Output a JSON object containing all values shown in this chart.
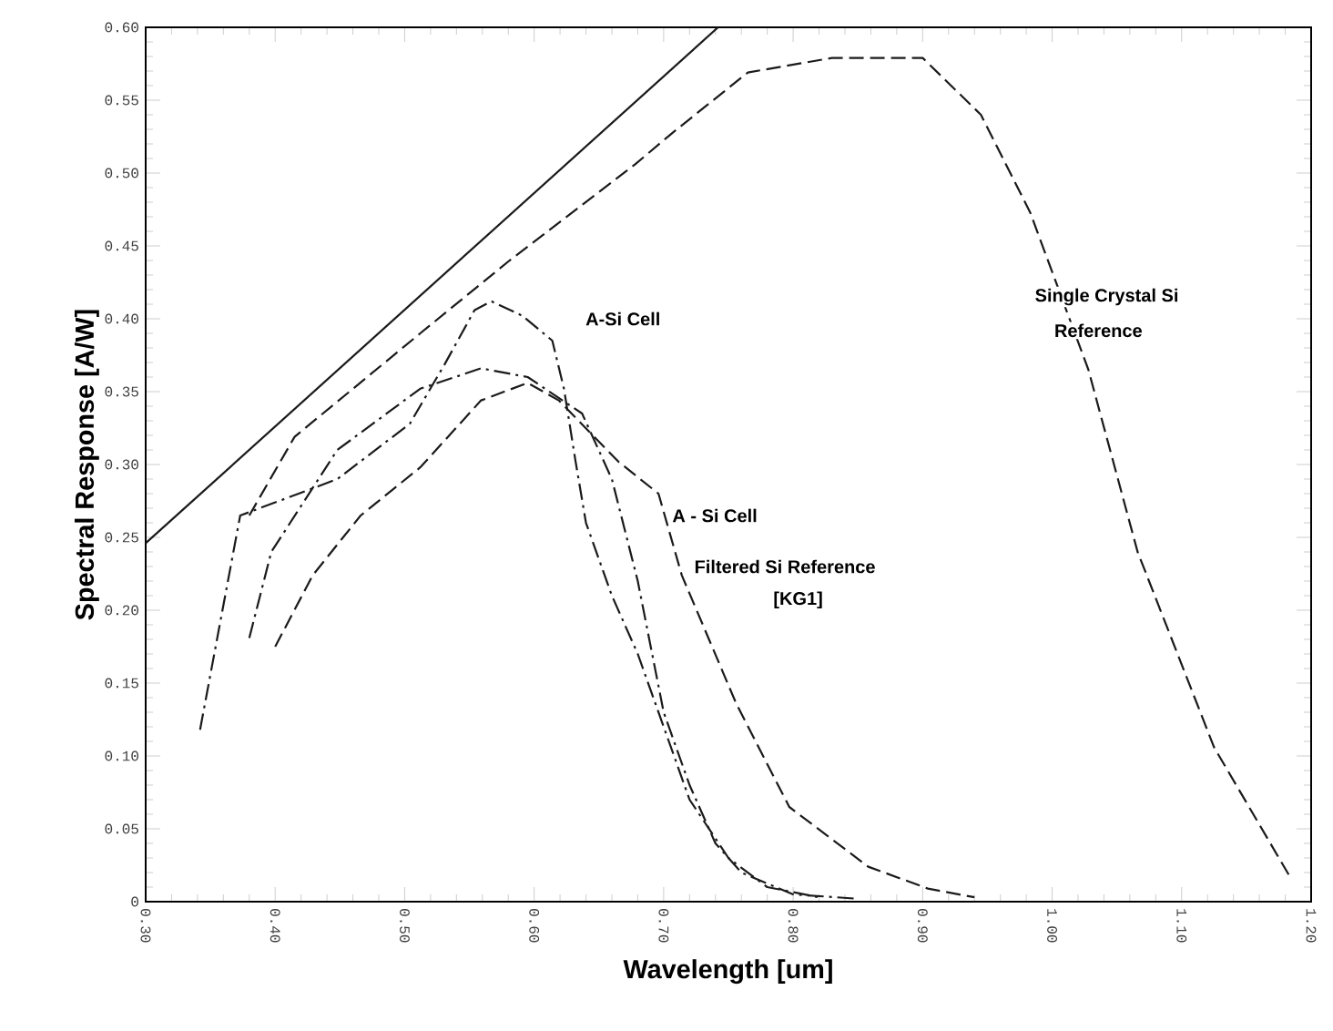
{
  "chart_data": {
    "type": "line",
    "xlabel": "Wavelength [um]",
    "ylabel": "Spectral Response [A/W]",
    "xlim": [
      0.3,
      1.2
    ],
    "ylim": [
      0,
      0.6
    ],
    "xticks": [
      {
        "value": 0.3,
        "label": "0.30"
      },
      {
        "value": 0.4,
        "label": "0.40"
      },
      {
        "value": 0.5,
        "label": "0.50"
      },
      {
        "value": 0.6,
        "label": "0.60"
      },
      {
        "value": 0.7,
        "label": "0.70"
      },
      {
        "value": 0.8,
        "label": "0.80"
      },
      {
        "value": 0.9,
        "label": "0.90"
      },
      {
        "value": 1.0,
        "label": "1.00"
      },
      {
        "value": 1.1,
        "label": "1.10"
      },
      {
        "value": 1.2,
        "label": "1.20"
      }
    ],
    "yticks": [
      0,
      {
        "value": 0.05,
        "label": "0.05"
      },
      {
        "value": 0.1,
        "label": "0.10"
      },
      {
        "value": 0.15,
        "label": "0.15"
      },
      {
        "value": 0.2,
        "label": "0.20"
      },
      {
        "value": 0.25,
        "label": "0.25"
      },
      {
        "value": 0.3,
        "label": "0.30"
      },
      {
        "value": 0.35,
        "label": "0.35"
      },
      {
        "value": 0.4,
        "label": "0.40"
      },
      {
        "value": 0.45,
        "label": "0.45"
      },
      {
        "value": 0.5,
        "label": "0.50"
      },
      {
        "value": 0.55,
        "label": "0.55"
      },
      {
        "value": 0.6,
        "label": "0.60"
      }
    ],
    "grid": false,
    "legend": false,
    "marker": "none",
    "series": [
      {
        "color": "#1a1a1a",
        "line_style": "solid",
        "x": [
          0.3,
          0.742
        ],
        "values": [
          0.246,
          0.6
        ]
      },
      {
        "color": "#1a1a1a",
        "line_style": "dashed",
        "x": [
          0.38,
          0.415,
          0.512,
          0.581,
          0.678,
          0.706,
          0.765,
          0.83,
          0.9,
          0.945,
          0.983,
          1.028,
          1.066,
          1.125,
          1.185
        ],
        "values": [
          0.265,
          0.319,
          0.39,
          0.44,
          0.506,
          0.527,
          0.569,
          0.579,
          0.579,
          0.54,
          0.473,
          0.365,
          0.24,
          0.106,
          0.015
        ]
      },
      {
        "color": "#1a1a1a",
        "line_style": "dashdot",
        "x": [
          0.342,
          0.373,
          0.448,
          0.504,
          0.531,
          0.554,
          0.567,
          0.591,
          0.614,
          0.623,
          0.632,
          0.64,
          0.66,
          0.68,
          0.7,
          0.72,
          0.75,
          0.78,
          0.82
        ],
        "values": [
          0.118,
          0.265,
          0.29,
          0.328,
          0.369,
          0.406,
          0.412,
          0.402,
          0.385,
          0.352,
          0.302,
          0.26,
          0.21,
          0.17,
          0.12,
          0.07,
          0.03,
          0.01,
          0.003
        ]
      },
      {
        "color": "#1a1a1a",
        "line_style": "dashdot",
        "x": [
          0.38,
          0.397,
          0.448,
          0.512,
          0.559,
          0.595,
          0.637,
          0.66,
          0.68,
          0.7,
          0.72,
          0.74,
          0.76,
          0.8,
          0.85
        ],
        "values": [
          0.181,
          0.24,
          0.31,
          0.352,
          0.366,
          0.36,
          0.335,
          0.29,
          0.22,
          0.13,
          0.08,
          0.04,
          0.02,
          0.005,
          0.002
        ]
      },
      {
        "color": "#1a1a1a",
        "line_style": "dashed",
        "x": [
          0.4,
          0.429,
          0.466,
          0.512,
          0.559,
          0.595,
          0.619,
          0.665,
          0.696,
          0.714,
          0.756,
          0.797,
          0.858,
          0.904,
          0.94
        ],
        "values": [
          0.175,
          0.224,
          0.265,
          0.298,
          0.344,
          0.356,
          0.344,
          0.302,
          0.28,
          0.224,
          0.136,
          0.065,
          0.024,
          0.009,
          0.003
        ]
      }
    ],
    "annotations": [
      "A-Si Cell",
      "Single Crystal Si",
      "Reference",
      "A - Si Cell",
      "Filtered Si Reference",
      "[KG1]"
    ]
  }
}
